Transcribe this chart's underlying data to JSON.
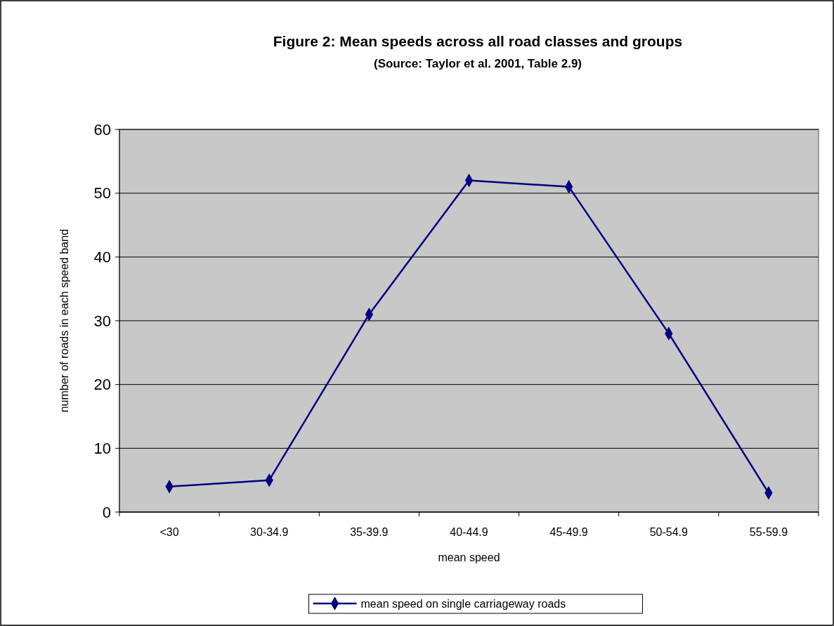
{
  "chart_data": {
    "type": "line",
    "title": "Figure 2: Mean speeds across all road classes and groups",
    "subtitle": "(Source: Taylor et al. 2001, Table 2.9)",
    "xlabel": "mean speed",
    "ylabel": "number of roads in each speed band",
    "categories": [
      "<30",
      "30-34.9",
      "35-39.9",
      "40-44.9",
      "45-49.9",
      "50-54.9",
      "55-59.9"
    ],
    "series": [
      {
        "name": "mean speed on single carriageway roads",
        "color": "#000080",
        "values": [
          4,
          5,
          31,
          52,
          51,
          28,
          3
        ]
      }
    ],
    "ylim": [
      0,
      60
    ],
    "yticks": [
      0,
      10,
      20,
      30,
      40,
      50,
      60
    ],
    "grid": "y",
    "legend": "bottom",
    "marker": "diamond",
    "line_style": "solid"
  }
}
